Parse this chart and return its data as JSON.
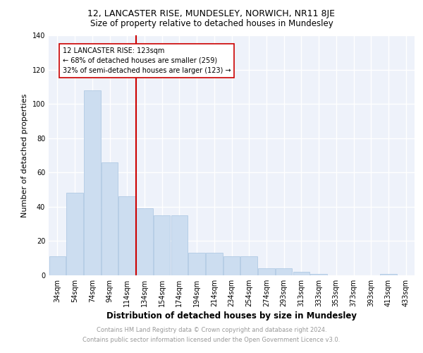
{
  "title": "12, LANCASTER RISE, MUNDESLEY, NORWICH, NR11 8JE",
  "subtitle": "Size of property relative to detached houses in Mundesley",
  "xlabel": "Distribution of detached houses by size in Mundesley",
  "ylabel": "Number of detached properties",
  "bar_labels": [
    "34sqm",
    "54sqm",
    "74sqm",
    "94sqm",
    "114sqm",
    "134sqm",
    "154sqm",
    "174sqm",
    "194sqm",
    "214sqm",
    "234sqm",
    "254sqm",
    "274sqm",
    "293sqm",
    "313sqm",
    "333sqm",
    "353sqm",
    "373sqm",
    "393sqm",
    "413sqm",
    "433sqm"
  ],
  "bar_values": [
    11,
    48,
    108,
    66,
    46,
    39,
    35,
    35,
    13,
    13,
    11,
    11,
    4,
    4,
    2,
    1,
    0,
    0,
    0,
    1,
    0
  ],
  "bar_color": "#ccddf0",
  "bar_edge_color": "#a8c4e0",
  "vline_x": 4.5,
  "vline_color": "#cc0000",
  "annotation_lines": [
    "12 LANCASTER RISE: 123sqm",
    "← 68% of detached houses are smaller (259)",
    "32% of semi-detached houses are larger (123) →"
  ],
  "annotation_box_color": "#cc0000",
  "ylim": [
    0,
    140
  ],
  "yticks": [
    0,
    20,
    40,
    60,
    80,
    100,
    120,
    140
  ],
  "footer_line1": "Contains HM Land Registry data © Crown copyright and database right 2024.",
  "footer_line2": "Contains public sector information licensed under the Open Government Licence v3.0.",
  "background_color": "#eef2fa",
  "grid_color": "#ffffff",
  "title_fontsize": 9,
  "subtitle_fontsize": 8.5,
  "tick_fontsize": 7,
  "ylabel_fontsize": 8,
  "xlabel_fontsize": 8.5,
  "annotation_fontsize": 7,
  "footer_fontsize": 6
}
